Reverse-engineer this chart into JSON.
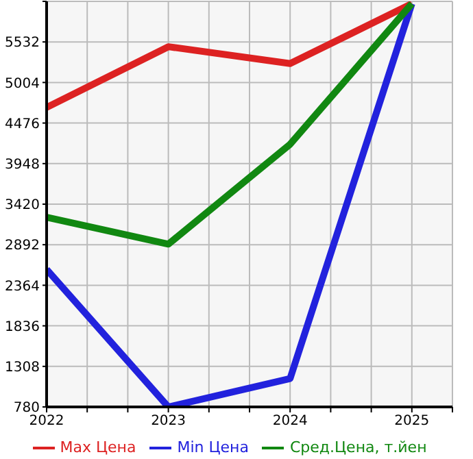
{
  "chart_data": {
    "type": "line",
    "x": [
      2022,
      2023,
      2024,
      2025
    ],
    "xlim": [
      2022,
      2025.3333
    ],
    "xticks": [
      2022,
      {
        "value": 2022.3333,
        "label": null
      },
      {
        "value": 2022.6667,
        "label": null
      },
      2023,
      {
        "value": 2023.3333,
        "label": null
      },
      {
        "value": 2023.6667,
        "label": null
      },
      2024,
      {
        "value": 2024.3333,
        "label": null
      },
      {
        "value": 2024.6667,
        "label": null
      },
      2025,
      {
        "value": 2025.3333,
        "label": null
      }
    ],
    "ylim": [
      780,
      6060
    ],
    "yticks": [
      780,
      1308,
      1836,
      2364,
      2892,
      3420,
      3948,
      4476,
      5004,
      5532,
      {
        "value": 6060,
        "label": null
      }
    ],
    "grid": true,
    "legend": "bottom",
    "marker": "none",
    "line_style": "solid",
    "series": [
      {
        "name": "Max Цена",
        "color": "#dd2222",
        "values": [
          4680,
          5470,
          5250,
          6030
        ]
      },
      {
        "name": "Min Цена",
        "color": "#2222dd",
        "values": [
          2570,
          780,
          1150,
          6030
        ]
      },
      {
        "name": "Сред.Цена, т.йен",
        "color": "#118811",
        "values": [
          3250,
          2900,
          4200,
          6030
        ]
      }
    ]
  }
}
